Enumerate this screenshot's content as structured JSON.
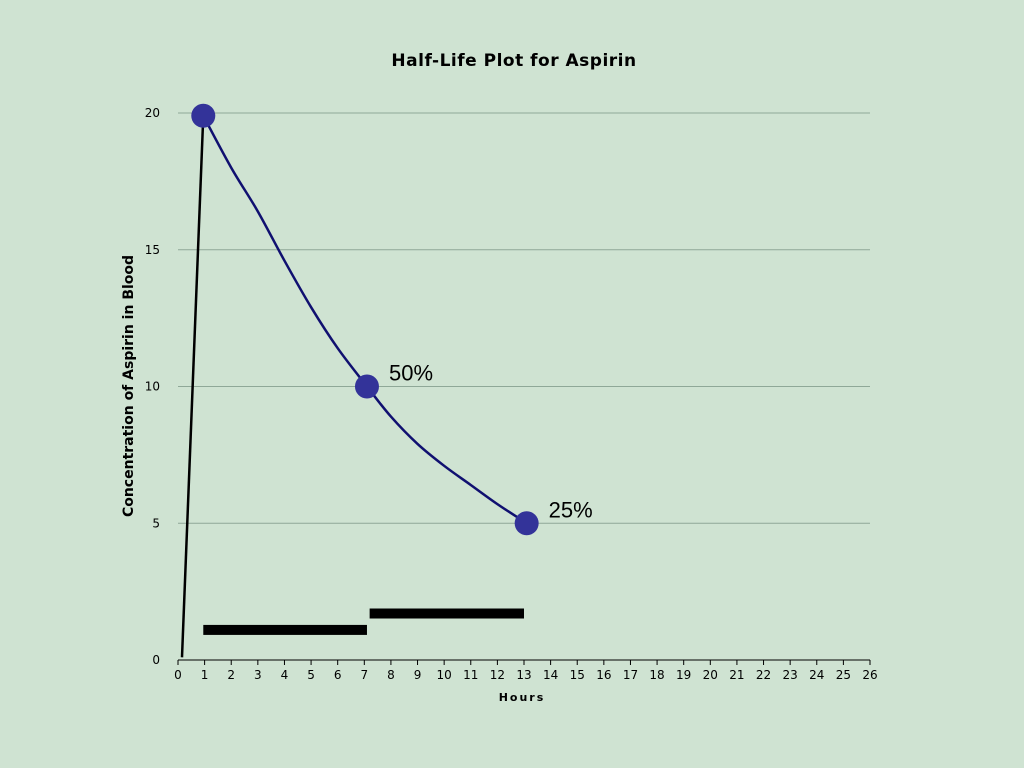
{
  "chart_data": {
    "type": "line",
    "title": "Half-Life Plot for Aspirin",
    "xlabel": "Hours",
    "ylabel": "Concentration of Aspirin in Blood",
    "xlim": [
      0,
      26
    ],
    "ylim": [
      0,
      20
    ],
    "x_ticks": [
      0,
      1,
      2,
      3,
      4,
      5,
      6,
      7,
      8,
      9,
      10,
      11,
      12,
      13,
      14,
      15,
      16,
      17,
      18,
      19,
      20,
      21,
      22,
      23,
      24,
      25,
      26
    ],
    "y_ticks": [
      0,
      5,
      10,
      15,
      20
    ],
    "grid": "horizontal",
    "absorption_line": {
      "x": [
        0.15,
        0.95
      ],
      "y": [
        0.1,
        19.9
      ]
    },
    "decay_curve": {
      "x": [
        0.95,
        2,
        3,
        4,
        5,
        6,
        7.1,
        8,
        9,
        10,
        11,
        12,
        13.1
      ],
      "y": [
        19.9,
        18.0,
        16.4,
        14.6,
        12.9,
        11.4,
        10.0,
        8.9,
        7.9,
        7.1,
        6.4,
        5.7,
        5.0
      ]
    },
    "markers": [
      {
        "x": 0.95,
        "y": 19.9,
        "label": ""
      },
      {
        "x": 7.1,
        "y": 10.0,
        "label": "50%"
      },
      {
        "x": 13.1,
        "y": 5.0,
        "label": "25%"
      }
    ],
    "bars": [
      {
        "x_start": 0.95,
        "x_end": 7.1,
        "y": 1.1
      },
      {
        "x_start": 7.2,
        "x_end": 13.0,
        "y": 1.7
      }
    ],
    "colors": {
      "background": "#cfe3d2",
      "curve": "#101070",
      "marker": "#333399",
      "bar": "#000000",
      "grid": "#8fa898"
    }
  }
}
